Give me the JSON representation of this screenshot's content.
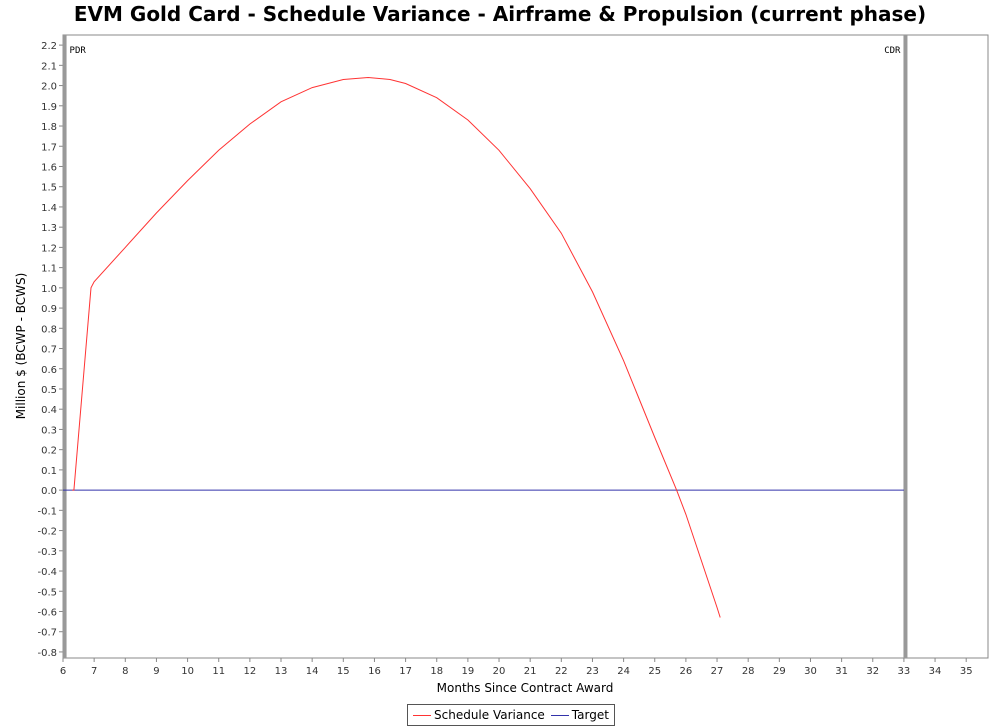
{
  "chart_data": {
    "type": "line",
    "title": "EVM Gold Card - Schedule Variance - Airframe & Propulsion (current phase)",
    "xlabel": "Months Since Contract Award",
    "ylabel": "Million $ (BCWP - BCWS)",
    "xlim": [
      6,
      35.7
    ],
    "ylim": [
      -0.83,
      2.25
    ],
    "x_ticks": [
      6,
      7,
      8,
      9,
      10,
      11,
      12,
      13,
      14,
      15,
      16,
      17,
      18,
      19,
      20,
      21,
      22,
      23,
      24,
      25,
      26,
      27,
      28,
      29,
      30,
      31,
      32,
      33,
      34,
      35
    ],
    "y_ticks": [
      2.2,
      2.1,
      2.0,
      1.9,
      1.8,
      1.7,
      1.6,
      1.5,
      1.4,
      1.3,
      1.2,
      1.1,
      1.0,
      0.9,
      0.8,
      0.7,
      0.6,
      0.5,
      0.4,
      0.3,
      0.2,
      0.1,
      0.0,
      -0.1,
      -0.2,
      -0.3,
      -0.4,
      -0.5,
      -0.6,
      -0.7,
      -0.8
    ],
    "grid": false,
    "legend_position": "bottom",
    "markers": [
      {
        "label": "PDR",
        "x": 6.05
      },
      {
        "label": "CDR",
        "x": 33.05
      }
    ],
    "series": [
      {
        "name": "Schedule Variance",
        "color": "#ff3333",
        "x": [
          6.3,
          6.35,
          6.9,
          7.0,
          8.0,
          9.0,
          10.0,
          11.0,
          12.0,
          13.0,
          14.0,
          15.0,
          15.8,
          16.5,
          17.0,
          18.0,
          19.0,
          20.0,
          21.0,
          22.0,
          23.0,
          24.0,
          25.0,
          25.7,
          26.0,
          27.0,
          27.1
        ],
        "values": [
          0.0,
          0.0,
          1.0,
          1.03,
          1.2,
          1.37,
          1.53,
          1.68,
          1.81,
          1.92,
          1.99,
          2.03,
          2.04,
          2.03,
          2.01,
          1.94,
          1.83,
          1.68,
          1.49,
          1.27,
          0.98,
          0.64,
          0.26,
          0.0,
          -0.12,
          -0.58,
          -0.63
        ]
      },
      {
        "name": "Target",
        "color": "#3333aa",
        "x": [
          6.0,
          33.0
        ],
        "values": [
          0.0,
          0.0
        ]
      }
    ]
  }
}
